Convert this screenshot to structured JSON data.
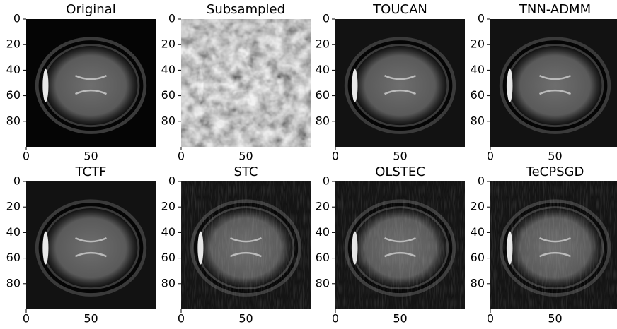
{
  "chart_data": [
    {
      "type": "image",
      "title": "Original",
      "xlim": [
        0,
        100
      ],
      "ylim": [
        100,
        0
      ],
      "xticks": [
        0,
        50
      ],
      "yticks": [
        0,
        20,
        40,
        60,
        80
      ]
    },
    {
      "type": "image",
      "title": "Subsampled",
      "xlim": [
        0,
        100
      ],
      "ylim": [
        100,
        0
      ],
      "xticks": [
        0,
        50
      ],
      "yticks": [
        0,
        20,
        40,
        60,
        80
      ]
    },
    {
      "type": "image",
      "title": "TOUCAN",
      "xlim": [
        0,
        100
      ],
      "ylim": [
        100,
        0
      ],
      "xticks": [
        0,
        50
      ],
      "yticks": [
        0,
        20,
        40,
        60,
        80
      ]
    },
    {
      "type": "image",
      "title": "TNN-ADMM",
      "xlim": [
        0,
        100
      ],
      "ylim": [
        100,
        0
      ],
      "xticks": [
        0,
        50
      ],
      "yticks": [
        0,
        20,
        40,
        60,
        80
      ]
    },
    {
      "type": "image",
      "title": "TCTF",
      "xlim": [
        0,
        100
      ],
      "ylim": [
        100,
        0
      ],
      "xticks": [
        0,
        50
      ],
      "yticks": [
        0,
        20,
        40,
        60,
        80
      ]
    },
    {
      "type": "image",
      "title": "STC",
      "xlim": [
        0,
        100
      ],
      "ylim": [
        100,
        0
      ],
      "xticks": [
        0,
        50
      ],
      "yticks": [
        0,
        20,
        40,
        60,
        80
      ]
    },
    {
      "type": "image",
      "title": "OLSTEC",
      "xlim": [
        0,
        100
      ],
      "ylim": [
        100,
        0
      ],
      "xticks": [
        0,
        50
      ],
      "yticks": [
        0,
        20,
        40,
        60,
        80
      ]
    },
    {
      "type": "image",
      "title": "TeCPSGD",
      "xlim": [
        0,
        100
      ],
      "ylim": [
        100,
        0
      ],
      "xticks": [
        0,
        50
      ],
      "yticks": [
        0,
        20,
        40,
        60,
        80
      ]
    }
  ]
}
